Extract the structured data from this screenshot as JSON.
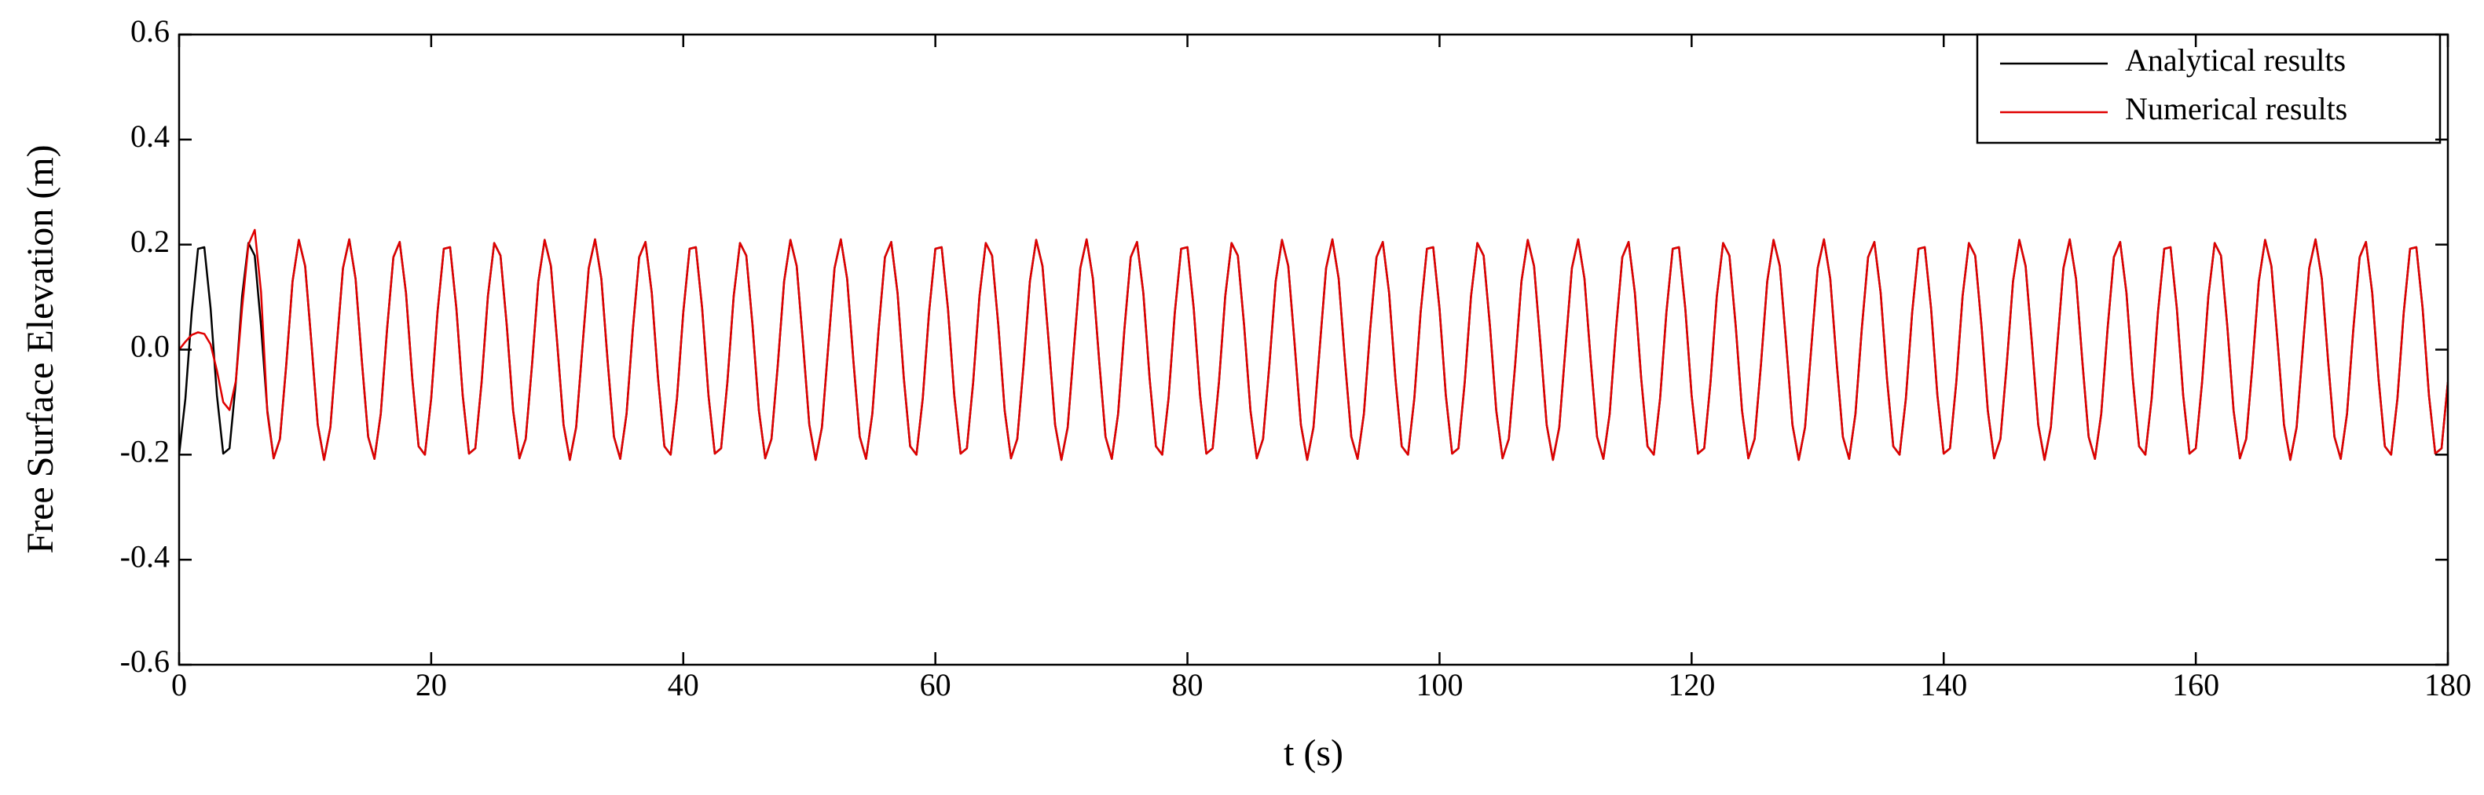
{
  "chart_data": {
    "type": "line",
    "ylabel": "Free Surface Elevation (m)",
    "xlabel": "t (s)",
    "xlim": [
      0,
      180
    ],
    "ylim": [
      -0.6,
      0.6
    ],
    "xticks": [
      0,
      20,
      40,
      60,
      80,
      100,
      120,
      140,
      160,
      180
    ],
    "yticks": [
      -0.6,
      -0.4,
      -0.2,
      {
        "value": 0,
        "label": "0.0"
      },
      0.2,
      0.4,
      0.6
    ],
    "legend": "upper right",
    "x": [
      0,
      0.5,
      1,
      1.5,
      2,
      2.5,
      3,
      3.5,
      4,
      4.5,
      5,
      5.5,
      6,
      6.5,
      7,
      7.5,
      8,
      8.5,
      9,
      9.5,
      10,
      10.5,
      11,
      11.5,
      12,
      12.5,
      13,
      13.5,
      14,
      14.5,
      15,
      15.5,
      16,
      16.5,
      17,
      17.5,
      18,
      18.5,
      19,
      19.5,
      20,
      20.5,
      21,
      21.5,
      22,
      22.5,
      23,
      23.5,
      24,
      24.5,
      25,
      25.5,
      26,
      26.5,
      27,
      27.5,
      28,
      28.5,
      29,
      29.5,
      30,
      30.5,
      31,
      31.5,
      32,
      32.5,
      33,
      33.5,
      34,
      34.5,
      35,
      35.5,
      36,
      36.5,
      37,
      37.5,
      38,
      38.5,
      39,
      39.5,
      40,
      40.5,
      41,
      41.5,
      42,
      42.5,
      43,
      43.5,
      44,
      44.5,
      45,
      45.5,
      46,
      46.5,
      47,
      47.5,
      48,
      48.5,
      49,
      49.5,
      50,
      50.5,
      51,
      51.5,
      52,
      52.5,
      53,
      53.5,
      54,
      54.5,
      55,
      55.5,
      56,
      56.5,
      57,
      57.5,
      58,
      58.5,
      59,
      59.5,
      60,
      60.5,
      61,
      61.5,
      62,
      62.5,
      63,
      63.5,
      64,
      64.5,
      65,
      65.5,
      66,
      66.5,
      67,
      67.5,
      68,
      68.5,
      69,
      69.5,
      70,
      70.5,
      71,
      71.5,
      72,
      72.5,
      73,
      73.5,
      74,
      74.5,
      75,
      75.5,
      76,
      76.5,
      77,
      77.5,
      78,
      78.5,
      79,
      79.5,
      80,
      80.5,
      81,
      81.5,
      82,
      82.5,
      83,
      83.5,
      84,
      84.5,
      85,
      85.5,
      86,
      86.5,
      87,
      87.5,
      88,
      88.5,
      89,
      89.5,
      90,
      90.5,
      91,
      91.5,
      92,
      92.5,
      93,
      93.5,
      94,
      94.5,
      95,
      95.5,
      96,
      96.5,
      97,
      97.5,
      98,
      98.5,
      99,
      99.5,
      100,
      100.5,
      101,
      101.5,
      102,
      102.5,
      103,
      103.5,
      104,
      104.5,
      105,
      105.5,
      106,
      106.5,
      107,
      107.5,
      108,
      108.5,
      109,
      109.5,
      110,
      110.5,
      111,
      111.5,
      112,
      112.5,
      113,
      113.5,
      114,
      114.5,
      115,
      115.5,
      116,
      116.5,
      117,
      117.5,
      118,
      118.5,
      119,
      119.5,
      120,
      120.5,
      121,
      121.5,
      122,
      122.5,
      123,
      123.5,
      124,
      124.5,
      125,
      125.5,
      126,
      126.5,
      127,
      127.5,
      128,
      128.5,
      129,
      129.5,
      130,
      130.5,
      131,
      131.5,
      132,
      132.5,
      133,
      133.5,
      134,
      134.5,
      135,
      135.5,
      136,
      136.5,
      137,
      137.5,
      138,
      138.5,
      139,
      139.5,
      140,
      140.5,
      141,
      141.5,
      142,
      142.5,
      143,
      143.5,
      144,
      144.5,
      145,
      145.5,
      146,
      146.5,
      147,
      147.5,
      148,
      148.5,
      149,
      149.5,
      150,
      150.5,
      151,
      151.5,
      152,
      152.5,
      153,
      153.5,
      154,
      154.5,
      155,
      155.5,
      156,
      156.5,
      157,
      157.5,
      158,
      158.5,
      159,
      159.5,
      160,
      160.5,
      161,
      161.5,
      162,
      162.5,
      163,
      163.5,
      164,
      164.5,
      165,
      165.5,
      166,
      166.5,
      167,
      167.5,
      168,
      168.5,
      169,
      169.5,
      170,
      170.5,
      171,
      171.5,
      172,
      172.5,
      173,
      173.5,
      174,
      174.5,
      175,
      175.5,
      176,
      176.5,
      177,
      177.5,
      178,
      178.5,
      179,
      179.5,
      180
    ],
    "series": [
      {
        "name": "Analytical results",
        "color": "#000000",
        "values": [
          -0.2,
          -0.093,
          0.071,
          0.192,
          0.195,
          0.078,
          -0.087,
          -0.198,
          -0.188,
          -0.062,
          0.102,
          0.203,
          0.179,
          0.045,
          -0.116,
          -0.207,
          -0.17,
          -0.029,
          0.13,
          0.209,
          0.159,
          0.012,
          -0.143,
          -0.21,
          -0.148,
          0.005,
          0.155,
          0.21,
          0.135,
          -0.022,
          -0.166,
          -0.208,
          -0.122,
          0.039,
          0.176,
          0.205,
          0.108,
          -0.055,
          -0.184,
          -0.2,
          -0.093,
          0.071,
          0.192,
          0.195,
          0.078,
          -0.087,
          -0.198,
          -0.188,
          -0.062,
          0.102,
          0.203,
          0.179,
          0.045,
          -0.116,
          -0.207,
          -0.17,
          -0.029,
          0.13,
          0.209,
          0.159,
          0.012,
          -0.143,
          -0.21,
          -0.148,
          0.005,
          0.155,
          0.21,
          0.135,
          -0.022,
          -0.166,
          -0.208,
          -0.122,
          0.039,
          0.176,
          0.205,
          0.108,
          -0.055,
          -0.184,
          -0.2,
          -0.093,
          0.071,
          0.192,
          0.195,
          0.078,
          -0.087,
          -0.198,
          -0.188,
          -0.062,
          0.102,
          0.203,
          0.179,
          0.045,
          -0.116,
          -0.207,
          -0.17,
          -0.029,
          0.13,
          0.209,
          0.159,
          0.012,
          -0.143,
          -0.21,
          -0.148,
          0.005,
          0.155,
          0.21,
          0.135,
          -0.022,
          -0.166,
          -0.208,
          -0.122,
          0.039,
          0.176,
          0.205,
          0.108,
          -0.055,
          -0.184,
          -0.2,
          -0.093,
          0.071,
          0.192,
          0.195,
          0.078,
          -0.087,
          -0.198,
          -0.188,
          -0.062,
          0.102,
          0.203,
          0.179,
          0.045,
          -0.116,
          -0.207,
          -0.17,
          -0.029,
          0.13,
          0.209,
          0.159,
          0.012,
          -0.143,
          -0.21,
          -0.148,
          0.005,
          0.155,
          0.21,
          0.135,
          -0.022,
          -0.166,
          -0.208,
          -0.122,
          0.039,
          0.176,
          0.205,
          0.108,
          -0.055,
          -0.184,
          -0.2,
          -0.093,
          0.071,
          0.192,
          0.195,
          0.078,
          -0.087,
          -0.198,
          -0.188,
          -0.062,
          0.102,
          0.203,
          0.179,
          0.045,
          -0.116,
          -0.207,
          -0.17,
          -0.029,
          0.13,
          0.209,
          0.159,
          0.012,
          -0.143,
          -0.21,
          -0.148,
          0.005,
          0.155,
          0.21,
          0.135,
          -0.022,
          -0.166,
          -0.208,
          -0.122,
          0.039,
          0.176,
          0.205,
          0.108,
          -0.055,
          -0.184,
          -0.2,
          -0.093,
          0.071,
          0.192,
          0.195,
          0.078,
          -0.087,
          -0.198,
          -0.188,
          -0.062,
          0.102,
          0.203,
          0.179,
          0.045,
          -0.116,
          -0.207,
          -0.17,
          -0.029,
          0.13,
          0.209,
          0.159,
          0.012,
          -0.143,
          -0.21,
          -0.148,
          0.005,
          0.155,
          0.21,
          0.135,
          -0.022,
          -0.166,
          -0.208,
          -0.122,
          0.039,
          0.176,
          0.205,
          0.108,
          -0.055,
          -0.184,
          -0.2,
          -0.093,
          0.071,
          0.192,
          0.195,
          0.078,
          -0.087,
          -0.198,
          -0.188,
          -0.062,
          0.102,
          0.203,
          0.179,
          0.045,
          -0.116,
          -0.207,
          -0.17,
          -0.029,
          0.13,
          0.209,
          0.159,
          0.012,
          -0.143,
          -0.21,
          -0.148,
          0.005,
          0.155,
          0.21,
          0.135,
          -0.022,
          -0.166,
          -0.208,
          -0.122,
          0.039,
          0.176,
          0.205,
          0.108,
          -0.055,
          -0.184,
          -0.2,
          -0.093,
          0.071,
          0.192,
          0.195,
          0.078,
          -0.087,
          -0.198,
          -0.188,
          -0.062,
          0.102,
          0.203,
          0.179,
          0.045,
          -0.116,
          -0.207,
          -0.17,
          -0.029,
          0.13,
          0.209,
          0.159,
          0.012,
          -0.143,
          -0.21,
          -0.148,
          0.005,
          0.155,
          0.21,
          0.135,
          -0.022,
          -0.166,
          -0.208,
          -0.122,
          0.039,
          0.176,
          0.205,
          0.108,
          -0.055,
          -0.184,
          -0.2,
          -0.093,
          0.071,
          0.192,
          0.195,
          0.078,
          -0.087,
          -0.198,
          -0.188,
          -0.062,
          0.102,
          0.203,
          0.179,
          0.045,
          -0.116,
          -0.207,
          -0.17,
          -0.029,
          0.13,
          0.209,
          0.159,
          0.012,
          -0.143,
          -0.21,
          -0.148,
          0.005,
          0.155,
          0.21,
          0.135,
          -0.022,
          -0.166,
          -0.208,
          -0.122,
          0.039,
          0.176,
          0.205,
          0.108,
          -0.055,
          -0.184,
          -0.2,
          -0.093,
          0.071,
          0.192,
          0.195,
          0.078,
          -0.087,
          -0.198,
          -0.188,
          -0.062
        ]
      },
      {
        "name": "Numerical results",
        "color": "#e00000",
        "values": [
          0,
          0.015,
          0.028,
          0.033,
          0.03,
          0.01,
          -0.04,
          -0.1,
          -0.115,
          -0.06,
          0.08,
          0.2,
          0.228,
          0.11,
          -0.12,
          -0.207,
          -0.17,
          -0.029,
          0.13,
          0.209,
          0.159,
          0.012,
          -0.143,
          -0.21,
          -0.148,
          0.005,
          0.155,
          0.21,
          0.135,
          -0.022,
          -0.166,
          -0.208,
          -0.122,
          0.039,
          0.176,
          0.205,
          0.108,
          -0.055,
          -0.184,
          -0.2,
          -0.093,
          0.071,
          0.192,
          0.195,
          0.078,
          -0.087,
          -0.198,
          -0.188,
          -0.062,
          0.102,
          0.203,
          0.179,
          0.045,
          -0.116,
          -0.207,
          -0.17,
          -0.029,
          0.13,
          0.209,
          0.159,
          0.012,
          -0.143,
          -0.21,
          -0.148,
          0.005,
          0.155,
          0.21,
          0.135,
          -0.022,
          -0.166,
          -0.208,
          -0.122,
          0.039,
          0.176,
          0.205,
          0.108,
          -0.055,
          -0.184,
          -0.2,
          -0.093,
          0.071,
          0.192,
          0.195,
          0.078,
          -0.087,
          -0.198,
          -0.188,
          -0.062,
          0.102,
          0.203,
          0.179,
          0.045,
          -0.116,
          -0.207,
          -0.17,
          -0.029,
          0.13,
          0.209,
          0.159,
          0.012,
          -0.143,
          -0.21,
          -0.148,
          0.005,
          0.155,
          0.21,
          0.135,
          -0.022,
          -0.166,
          -0.208,
          -0.122,
          0.039,
          0.176,
          0.205,
          0.108,
          -0.055,
          -0.184,
          -0.2,
          -0.093,
          0.071,
          0.192,
          0.195,
          0.078,
          -0.087,
          -0.198,
          -0.188,
          -0.062,
          0.102,
          0.203,
          0.179,
          0.045,
          -0.116,
          -0.207,
          -0.17,
          -0.029,
          0.13,
          0.209,
          0.159,
          0.012,
          -0.143,
          -0.21,
          -0.148,
          0.005,
          0.155,
          0.21,
          0.135,
          -0.022,
          -0.166,
          -0.208,
          -0.122,
          0.039,
          0.176,
          0.205,
          0.108,
          -0.055,
          -0.184,
          -0.2,
          -0.093,
          0.071,
          0.192,
          0.195,
          0.078,
          -0.087,
          -0.198,
          -0.188,
          -0.062,
          0.102,
          0.203,
          0.179,
          0.045,
          -0.116,
          -0.207,
          -0.17,
          -0.029,
          0.13,
          0.209,
          0.159,
          0.012,
          -0.143,
          -0.21,
          -0.148,
          0.005,
          0.155,
          0.21,
          0.135,
          -0.022,
          -0.166,
          -0.208,
          -0.122,
          0.039,
          0.176,
          0.205,
          0.108,
          -0.055,
          -0.184,
          -0.2,
          -0.093,
          0.071,
          0.192,
          0.195,
          0.078,
          -0.087,
          -0.198,
          -0.188,
          -0.062,
          0.102,
          0.203,
          0.179,
          0.045,
          -0.116,
          -0.207,
          -0.17,
          -0.029,
          0.13,
          0.209,
          0.159,
          0.012,
          -0.143,
          -0.21,
          -0.148,
          0.005,
          0.155,
          0.21,
          0.135,
          -0.022,
          -0.166,
          -0.208,
          -0.122,
          0.039,
          0.176,
          0.205,
          0.108,
          -0.055,
          -0.184,
          -0.2,
          -0.093,
          0.071,
          0.192,
          0.195,
          0.078,
          -0.087,
          -0.198,
          -0.188,
          -0.062,
          0.102,
          0.203,
          0.179,
          0.045,
          -0.116,
          -0.207,
          -0.17,
          -0.029,
          0.13,
          0.209,
          0.159,
          0.012,
          -0.143,
          -0.21,
          -0.148,
          0.005,
          0.155,
          0.21,
          0.135,
          -0.022,
          -0.166,
          -0.208,
          -0.122,
          0.039,
          0.176,
          0.205,
          0.108,
          -0.055,
          -0.184,
          -0.2,
          -0.093,
          0.071,
          0.192,
          0.195,
          0.078,
          -0.087,
          -0.198,
          -0.188,
          -0.062,
          0.102,
          0.203,
          0.179,
          0.045,
          -0.116,
          -0.207,
          -0.17,
          -0.029,
          0.13,
          0.209,
          0.159,
          0.012,
          -0.143,
          -0.21,
          -0.148,
          0.005,
          0.155,
          0.21,
          0.135,
          -0.022,
          -0.166,
          -0.208,
          -0.122,
          0.039,
          0.176,
          0.205,
          0.108,
          -0.055,
          -0.184,
          -0.2,
          -0.093,
          0.071,
          0.192,
          0.195,
          0.078,
          -0.087,
          -0.198,
          -0.188,
          -0.062,
          0.102,
          0.203,
          0.179,
          0.045,
          -0.116,
          -0.207,
          -0.17,
          -0.029,
          0.13,
          0.209,
          0.159,
          0.012,
          -0.143,
          -0.21,
          -0.148,
          0.005,
          0.155,
          0.21,
          0.135,
          -0.022,
          -0.166,
          -0.208,
          -0.122,
          0.039,
          0.176,
          0.205,
          0.108,
          -0.055,
          -0.184,
          -0.2,
          -0.093,
          0.071,
          0.192,
          0.195,
          0.078,
          -0.087,
          -0.198,
          -0.188,
          -0.062
        ]
      }
    ]
  }
}
